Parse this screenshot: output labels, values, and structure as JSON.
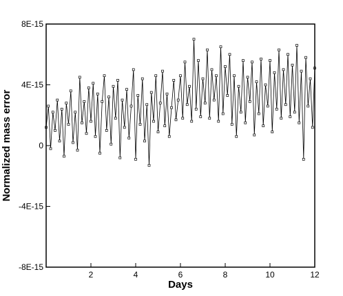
{
  "chart_data": {
    "type": "line",
    "xlabel": "Days",
    "ylabel": "Normalized mass error",
    "xlim": [
      0,
      12
    ],
    "ylim": [
      -8e-15,
      8e-15
    ],
    "x_ticks": [
      {
        "value": 2,
        "label": "2"
      },
      {
        "value": 4,
        "label": "4"
      },
      {
        "value": 6,
        "label": "6"
      },
      {
        "value": 8,
        "label": "8"
      },
      {
        "value": 10,
        "label": "10"
      },
      {
        "value": 12,
        "label": "12"
      }
    ],
    "y_ticks": [
      {
        "value": -8e-15,
        "label": "-8E-15"
      },
      {
        "value": -4e-15,
        "label": "-4E-15"
      },
      {
        "value": 0,
        "label": "0"
      },
      {
        "value": 4e-15,
        "label": "4E-15"
      },
      {
        "value": 8e-15,
        "label": "8E-15"
      }
    ],
    "grid": false,
    "series": [
      {
        "color": "#000000",
        "marker": "square",
        "x": [
          0.0,
          0.1,
          0.2,
          0.3,
          0.4,
          0.5,
          0.6,
          0.7,
          0.8,
          0.9,
          1.0,
          1.1,
          1.2,
          1.3,
          1.4,
          1.5,
          1.6,
          1.7,
          1.8,
          1.9,
          2.0,
          2.1,
          2.2,
          2.3,
          2.4,
          2.5,
          2.6,
          2.7,
          2.8,
          2.9,
          3.0,
          3.1,
          3.2,
          3.3,
          3.4,
          3.5,
          3.6,
          3.7,
          3.8,
          3.9,
          4.0,
          4.1,
          4.2,
          4.3,
          4.4,
          4.5,
          4.6,
          4.7,
          4.8,
          4.9,
          5.0,
          5.1,
          5.2,
          5.3,
          5.4,
          5.5,
          5.6,
          5.7,
          5.8,
          5.9,
          6.0,
          6.1,
          6.2,
          6.3,
          6.4,
          6.5,
          6.6,
          6.7,
          6.8,
          6.9,
          7.0,
          7.1,
          7.2,
          7.3,
          7.4,
          7.5,
          7.6,
          7.7,
          7.8,
          7.9,
          8.0,
          8.1,
          8.2,
          8.3,
          8.4,
          8.5,
          8.6,
          8.7,
          8.8,
          8.9,
          9.0,
          9.1,
          9.2,
          9.3,
          9.4,
          9.5,
          9.6,
          9.7,
          9.8,
          9.9,
          10.0,
          10.1,
          10.2,
          10.3,
          10.4,
          10.5,
          10.6,
          10.7,
          10.8,
          10.9,
          11.0,
          11.1,
          11.2,
          11.3,
          11.4,
          11.5,
          11.6,
          11.7,
          11.8,
          11.9,
          12.0
        ],
        "values": [
          1.2e-15,
          2.6e-15,
          -2e-16,
          2.2e-15,
          1e-15,
          3e-15,
          3e-16,
          2.4e-15,
          -7e-16,
          2.8e-15,
          1.4e-15,
          3.6e-15,
          2e-16,
          2.2e-15,
          -3e-16,
          4.5e-15,
          1.5e-15,
          2.9e-15,
          8e-16,
          3.8e-15,
          1.6e-15,
          4.1e-15,
          6e-16,
          3.4e-15,
          -5e-16,
          2.9e-15,
          4.6e-15,
          1e-15,
          3.2e-15,
          1e-16,
          3.9e-15,
          1.8e-15,
          4.3e-15,
          -8e-16,
          3e-15,
          1.2e-15,
          3.7e-15,
          5e-16,
          2.6e-15,
          5e-15,
          -9e-16,
          3.3e-15,
          1.4e-15,
          4.4e-15,
          3e-16,
          2.7e-15,
          -1.3e-15,
          3.5e-15,
          1.6e-15,
          4.6e-15,
          9e-16,
          2.8e-15,
          4.9e-15,
          1.3e-15,
          3.4e-15,
          6e-16,
          2.5e-15,
          4.3e-15,
          1.7e-15,
          3e-15,
          4.6e-15,
          1.8e-15,
          5.5e-15,
          2.7e-15,
          3.9e-15,
          1.6e-15,
          7e-15,
          2.4e-15,
          5.6e-15,
          1.9e-15,
          4.4e-15,
          2.8e-15,
          6.3e-15,
          1.8e-15,
          5e-15,
          3e-15,
          4.6e-15,
          1.6e-15,
          6.5e-15,
          2.1e-15,
          5.2e-15,
          3.3e-15,
          6e-15,
          1.4e-15,
          4.6e-15,
          6e-16,
          3.9e-15,
          2.2e-15,
          5.6e-15,
          1.5e-15,
          4.5e-15,
          2.9e-15,
          5.5e-15,
          7e-16,
          4.2e-15,
          2.1e-15,
          5.7e-15,
          1.3e-15,
          4e-15,
          2.6e-15,
          5.6e-15,
          9e-16,
          4.8e-15,
          2.4e-15,
          6.3e-15,
          1.8e-15,
          5e-15,
          2.7e-15,
          6e-15,
          1.9e-15,
          5.3e-15,
          2.2e-15,
          6.6e-15,
          1.5e-15,
          4.9e-15,
          -9e-16,
          5.8e-15,
          2.6e-15,
          4.4e-15,
          1.2e-15,
          5.1e-15
        ]
      }
    ]
  }
}
